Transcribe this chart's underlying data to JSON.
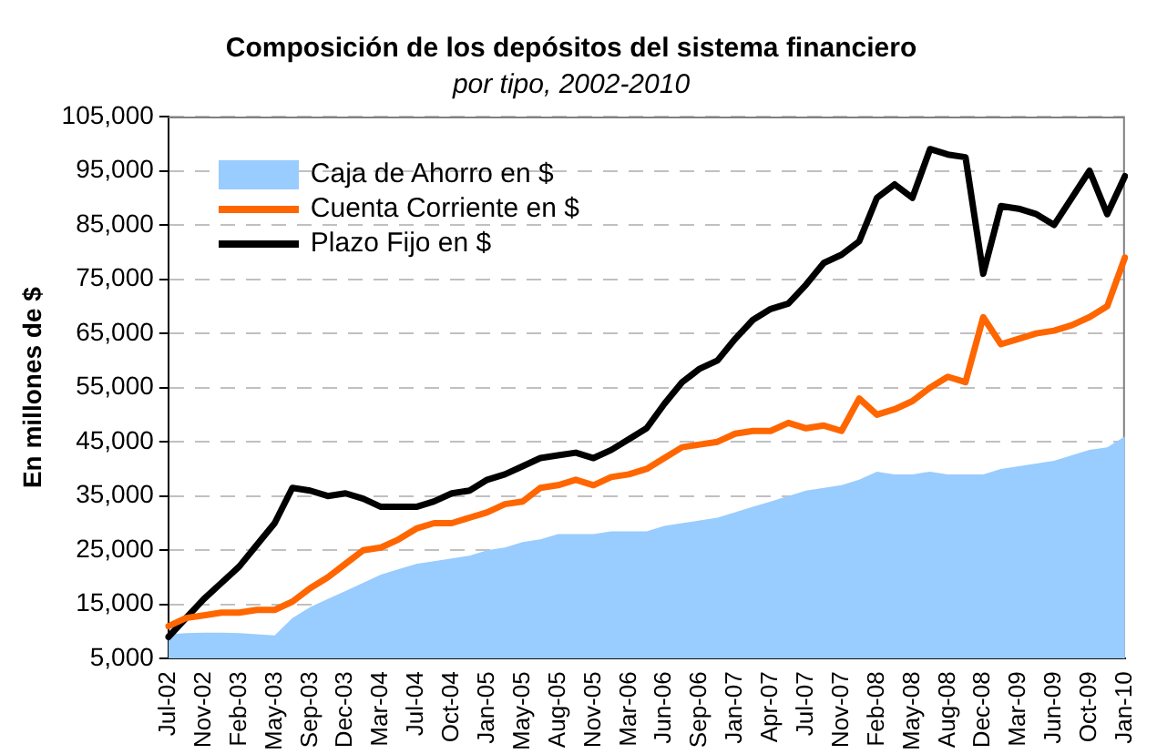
{
  "chart_data": {
    "type": "line",
    "title": "Composición de los depósitos del sistema financiero",
    "subtitle": "por tipo, 2002-2010",
    "ylabel": "En millones de $",
    "categories": [
      "Jul-02",
      null,
      "Nov-02",
      null,
      "Feb-03",
      null,
      "May-03",
      null,
      "Sep-03",
      null,
      "Dec-03",
      null,
      "Mar-04",
      null,
      "Jul-04",
      null,
      "Oct-04",
      null,
      "Jan-05",
      null,
      "May-05",
      null,
      "Aug-05",
      null,
      "Nov-05",
      null,
      "Mar-06",
      null,
      "Jun-06",
      null,
      "Sep-06",
      null,
      "Jan-07",
      null,
      "Apr-07",
      null,
      "Jul-07",
      null,
      "Nov-07",
      null,
      "Feb-08",
      null,
      "May-08",
      null,
      "Aug-08",
      null,
      "Dec-08",
      null,
      "Mar-09",
      null,
      "Jun-09",
      null,
      "Oct-09",
      null,
      "Jan-10"
    ],
    "series": [
      {
        "name": "Caja de Ahorro en $",
        "type": "area",
        "color": "#99ccff",
        "values": [
          9500,
          9700,
          9800,
          9800,
          9700,
          9500,
          9300,
          12500,
          14500,
          16000,
          17500,
          19000,
          20500,
          21500,
          22500,
          23000,
          23500,
          24000,
          25000,
          25500,
          26500,
          27000,
          28000,
          28000,
          28000,
          28500,
          28500,
          28500,
          29500,
          30000,
          30500,
          31000,
          32000,
          33000,
          34000,
          35000,
          36000,
          36500,
          37000,
          38000,
          39500,
          39000,
          39000,
          39500,
          39000,
          39000,
          39000,
          40000,
          40500,
          41000,
          41500,
          42500,
          43500,
          44000,
          46000
        ]
      },
      {
        "name": "Cuenta Corriente en $",
        "color": "#ff6600",
        "values": [
          11000,
          12500,
          13000,
          13500,
          13500,
          14000,
          14000,
          15500,
          18000,
          20000,
          22500,
          25000,
          25500,
          27000,
          29000,
          30000,
          30000,
          31000,
          32000,
          33500,
          34000,
          36500,
          37000,
          38000,
          37000,
          38500,
          39000,
          40000,
          42000,
          44000,
          44500,
          45000,
          46500,
          47000,
          47000,
          48500,
          47500,
          48000,
          47000,
          53000,
          50000,
          51000,
          52500,
          55000,
          57000,
          56000,
          68000,
          63000,
          64000,
          65000,
          65500,
          66500,
          68000,
          70000,
          79000
        ]
      },
      {
        "name": "Plazo Fijo en $",
        "color": "#000000",
        "values": [
          9000,
          12500,
          16000,
          19000,
          22000,
          26000,
          30000,
          36500,
          36000,
          35000,
          35500,
          34500,
          33000,
          33000,
          33000,
          34000,
          35500,
          36000,
          38000,
          39000,
          40500,
          42000,
          42500,
          43000,
          42000,
          43500,
          45500,
          47500,
          52000,
          56000,
          58500,
          60000,
          64000,
          67500,
          69500,
          70500,
          74000,
          78000,
          79500,
          82000,
          90000,
          92500,
          90000,
          99000,
          98000,
          97500,
          76000,
          88500,
          88000,
          87000,
          85000,
          90000,
          95000,
          87000,
          94000
        ]
      }
    ],
    "ylim": [
      5000,
      105000
    ],
    "yticks": [
      {
        "value": 5000,
        "label": "5,000"
      },
      {
        "value": 15000,
        "label": "15,000"
      },
      {
        "value": 25000,
        "label": "25,000"
      },
      {
        "value": 35000,
        "label": "35,000"
      },
      {
        "value": 45000,
        "label": "45,000"
      },
      {
        "value": 55000,
        "label": "55,000"
      },
      {
        "value": 65000,
        "label": "65,000"
      },
      {
        "value": 75000,
        "label": "75,000"
      },
      {
        "value": 85000,
        "label": "85,000"
      },
      {
        "value": 95000,
        "label": "95,000"
      },
      {
        "value": 105000,
        "label": "105,000"
      }
    ],
    "grid": "y",
    "legend": "top left",
    "line_style": "solid"
  }
}
